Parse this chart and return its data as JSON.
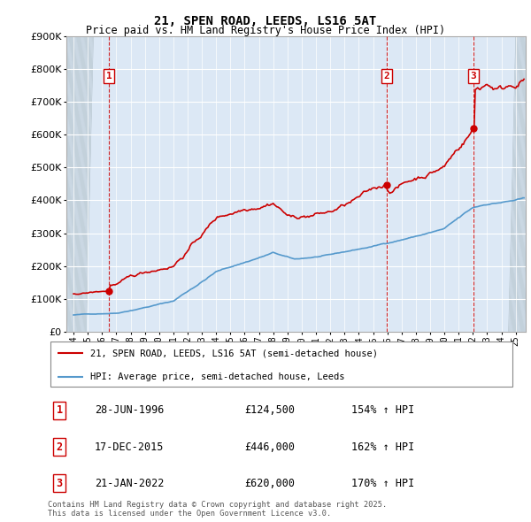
{
  "title": "21, SPEN ROAD, LEEDS, LS16 5AT",
  "subtitle": "Price paid vs. HM Land Registry's House Price Index (HPI)",
  "ylim": [
    0,
    900000
  ],
  "xlim_start": 1993.5,
  "xlim_end": 2025.7,
  "transactions": [
    {
      "num": 1,
      "date": "28-JUN-1996",
      "price": 124500,
      "pct": "154%",
      "year": 1996.49
    },
    {
      "num": 2,
      "date": "17-DEC-2015",
      "price": 446000,
      "pct": "162%",
      "year": 2015.96
    },
    {
      "num": 3,
      "date": "21-JAN-2022",
      "price": 620000,
      "pct": "170%",
      "year": 2022.05
    }
  ],
  "box_labels": [
    {
      "num": 1,
      "year": 1996.49,
      "y": 780000
    },
    {
      "num": 2,
      "year": 2015.96,
      "y": 780000
    },
    {
      "num": 3,
      "year": 2022.05,
      "y": 780000
    }
  ],
  "legend_line1": "21, SPEN ROAD, LEEDS, LS16 5AT (semi-detached house)",
  "legend_line2": "HPI: Average price, semi-detached house, Leeds",
  "footnote": "Contains HM Land Registry data © Crown copyright and database right 2025.\nThis data is licensed under the Open Government Licence v3.0.",
  "line_color": "#cc0000",
  "hpi_color": "#5599cc",
  "bg_color": "#ffffff",
  "plot_bg": "#dce8f5",
  "grid_color": "#ffffff",
  "hatch_left_end": 1994.42,
  "hatch_right_start": 2025.0
}
